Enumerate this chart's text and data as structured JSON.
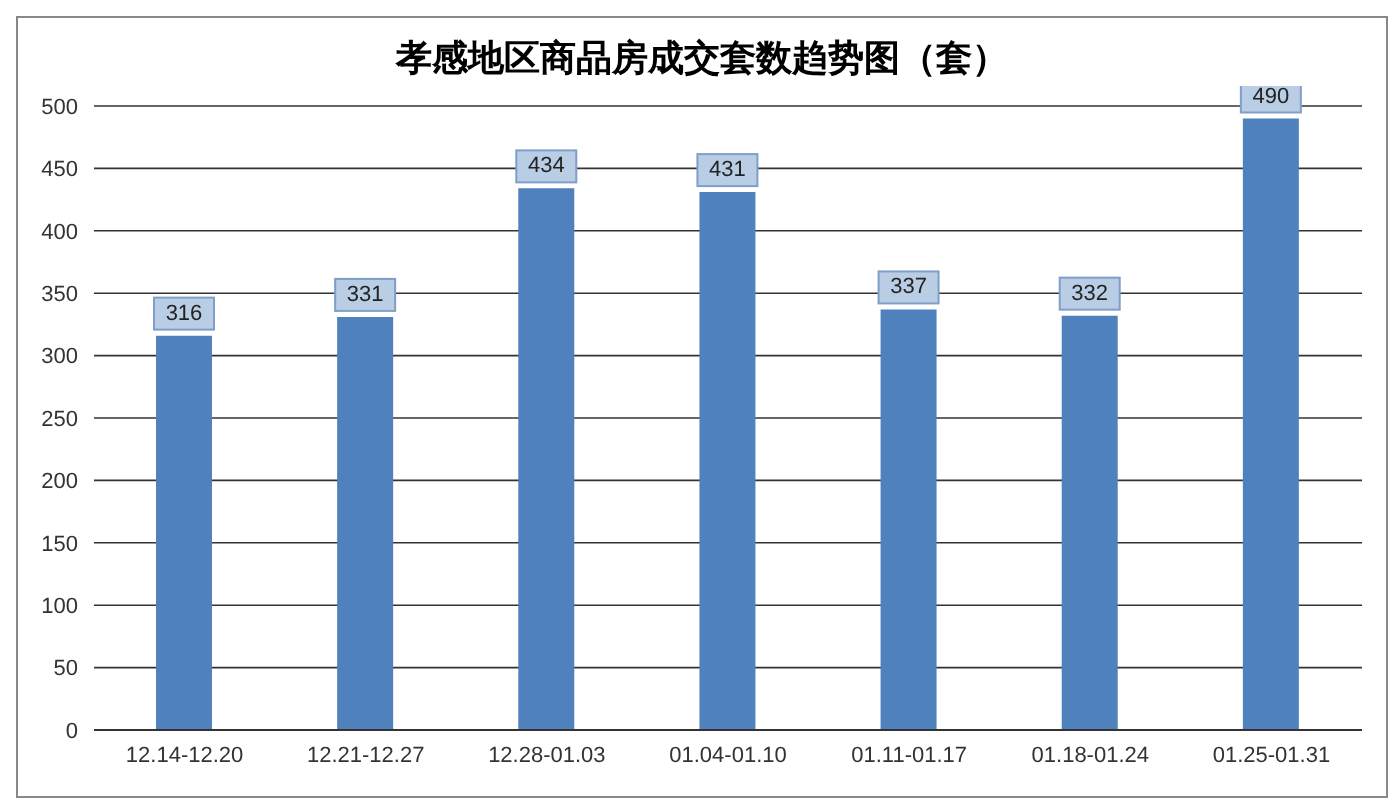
{
  "chart_data": {
    "type": "bar",
    "title": "孝感地区商品房成交套数趋势图（套）",
    "categories": [
      "12.14-12.20",
      "12.21-12.27",
      "12.28-01.03",
      "01.04-01.10",
      "01.11-01.17",
      "01.18-01.24",
      "01.25-01.31"
    ],
    "values": [
      316,
      331,
      434,
      431,
      337,
      332,
      490
    ],
    "color": "#4f81bd",
    "ylim": [
      0,
      500
    ],
    "yticks": [
      0,
      50,
      100,
      150,
      200,
      250,
      300,
      350,
      400,
      450,
      500
    ],
    "grid": "y",
    "data_labels": true
  }
}
